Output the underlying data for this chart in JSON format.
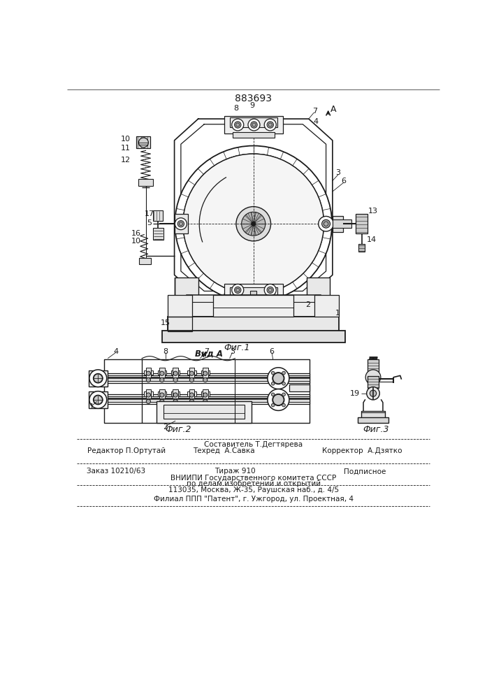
{
  "title": "883693",
  "fig1_caption": "Фиг.1",
  "fig2_caption": "Фиг.2",
  "fig3_caption": "Фиг.3",
  "view_label": "Вид А",
  "bg_color": "#ffffff",
  "lc": "#1a1a1a",
  "footer": {
    "compositor": "Составитель Т.Дегтярева",
    "editor": "Редактор П.Ортутай",
    "techred": "Техред  А.Савка",
    "corrector": "Корректор  А.Дзятко",
    "order": "Заказ 10210/63",
    "tirazh": "Тираж 910",
    "podpisnoe": "Подписное",
    "vnipi1": "ВНИИПИ Государственного комитета СССР",
    "vnipi2": "по делам изобретений и открытий",
    "vnipi3": "113035, Москва, Ж-35, Раушская наб., д. 4/5",
    "filial": "Филиал ППП \"Патент\", г. Ужгород, ул. Проектная, 4"
  }
}
